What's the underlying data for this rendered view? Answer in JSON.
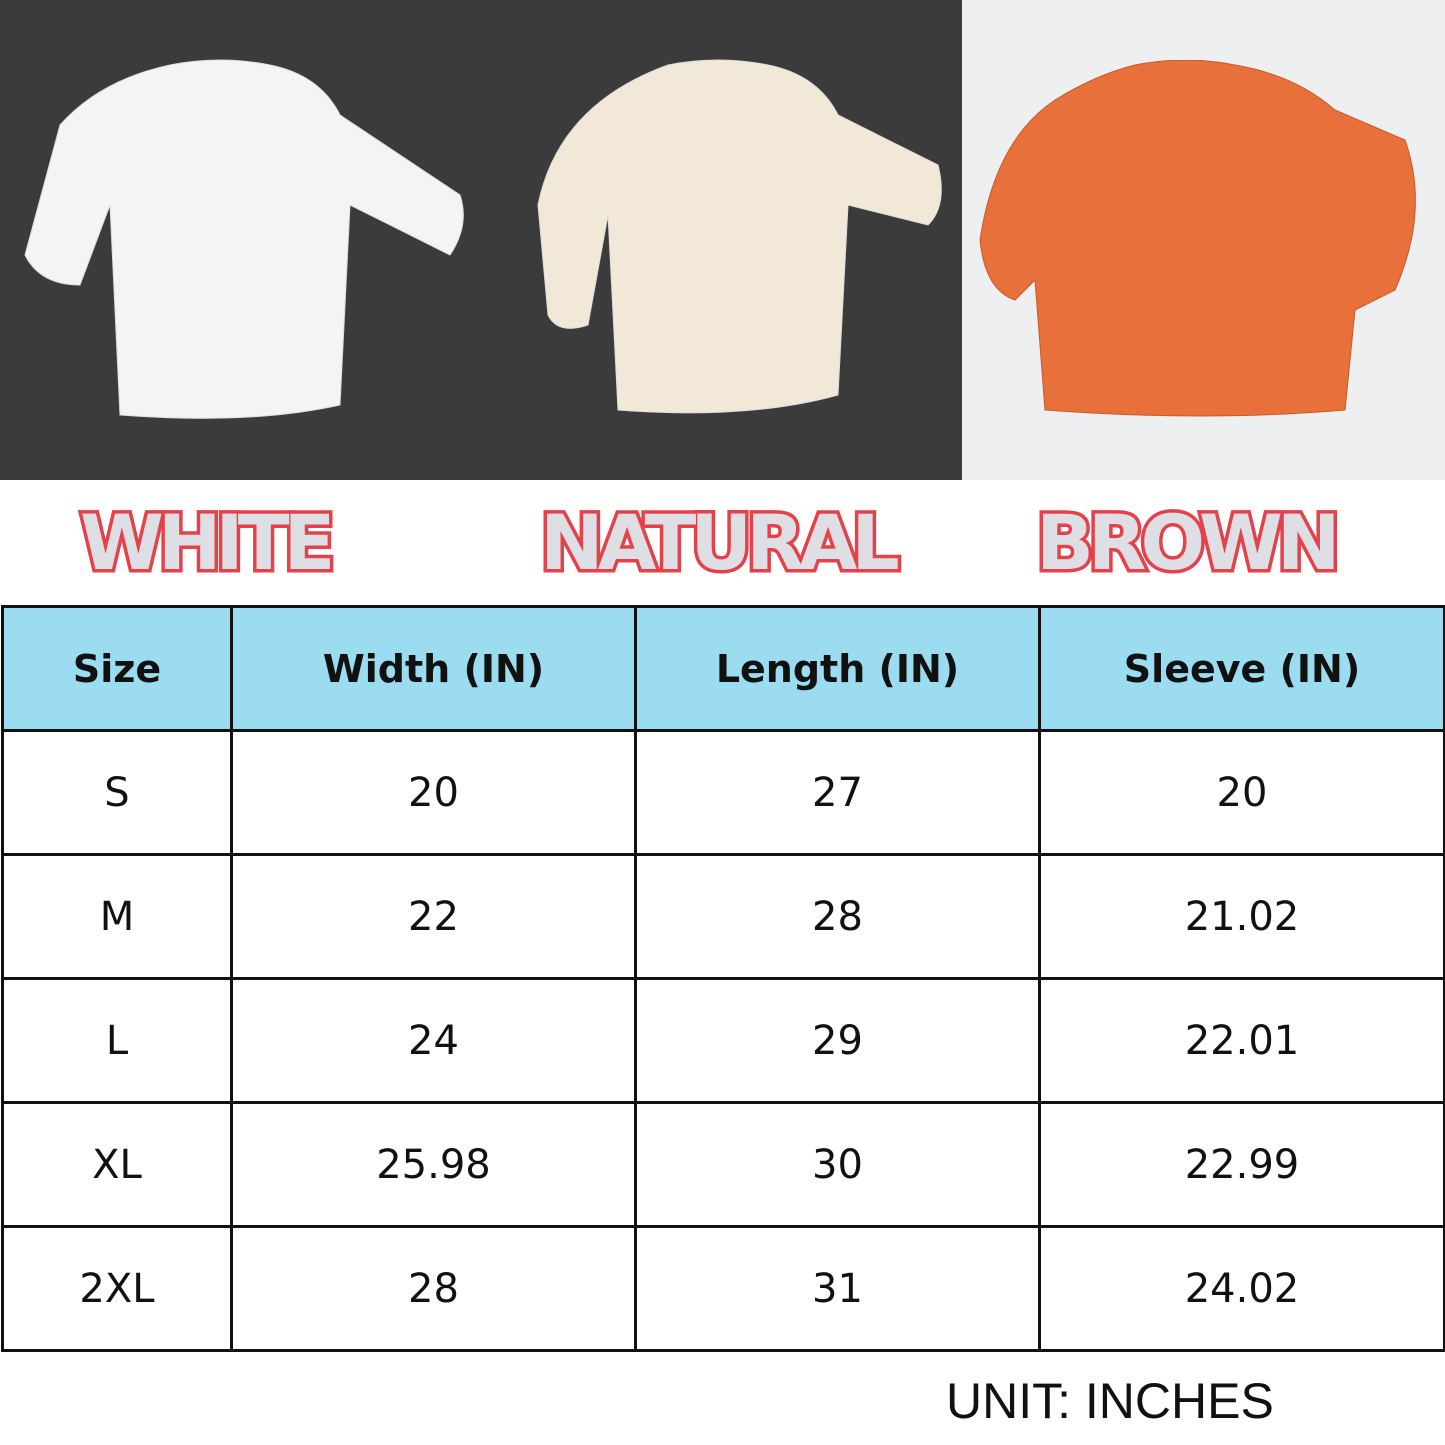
{
  "colors": {
    "dark_bg": "#3b3b3c",
    "light_bg": "#eeeff1",
    "label_fill": "#dedfe4",
    "label_stroke": "#e5414a",
    "header_bg": "#9bdcf0",
    "shirts": {
      "white": "#f4f4f6",
      "natural": "#f1e8d8",
      "brown": "#e8703a"
    }
  },
  "labels": [
    "WHITE",
    "NATURAL",
    "BROWN"
  ],
  "table": {
    "headers": [
      "Size",
      "Width (IN)",
      "Length (IN)",
      "Sleeve (IN)"
    ],
    "rows": [
      [
        "S",
        "20",
        "27",
        "20"
      ],
      [
        "M",
        "22",
        "28",
        "21.02"
      ],
      [
        "L",
        "24",
        "29",
        "22.01"
      ],
      [
        "XL",
        "25.98",
        "30",
        "22.99"
      ],
      [
        "2XL",
        "28",
        "31",
        "24.02"
      ]
    ]
  },
  "unit_note": "UNIT: INCHES"
}
